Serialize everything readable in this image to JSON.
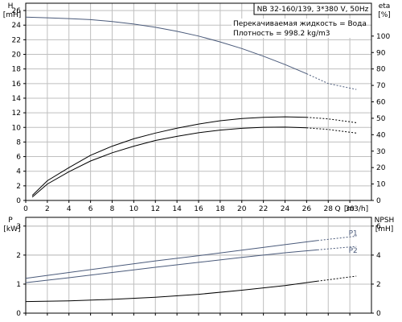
{
  "chart_data": [
    {
      "type": "line",
      "title": "NB 32-160/139, 3*380 V, 50Hz",
      "info": [
        "Перекачиваемая жидкость = Вода",
        "Плотность = 998.2 kg/m3"
      ],
      "y_left": {
        "label": "H",
        "unit": "[mH]",
        "ticks": [
          0,
          2,
          4,
          6,
          8,
          10,
          12,
          14,
          16,
          18,
          20,
          22,
          24,
          26
        ],
        "range": [
          0,
          27
        ]
      },
      "y_right": {
        "label": "eta",
        "unit": "[%]",
        "ticks": [
          0,
          10,
          20,
          30,
          40,
          50,
          60,
          70,
          80,
          90,
          100
        ],
        "range": [
          0,
          120
        ]
      },
      "x": {
        "label": "Q",
        "unit": "[m3/h]",
        "ticks": [
          0,
          2,
          4,
          6,
          8,
          10,
          12,
          14,
          16,
          18,
          20,
          22,
          24,
          26,
          28,
          30
        ],
        "range": [
          0,
          32
        ]
      },
      "grid": true,
      "series": [
        {
          "axis": "left",
          "color": "#4a5a7a",
          "x": [
            0,
            2,
            4,
            6,
            8,
            10,
            12,
            14,
            16,
            18,
            20,
            22,
            24,
            26,
            28,
            30.6
          ],
          "y": [
            25.1,
            25.0,
            24.9,
            24.75,
            24.5,
            24.15,
            23.7,
            23.15,
            22.5,
            21.7,
            20.8,
            19.75,
            18.6,
            17.35,
            16.0,
            15.2
          ],
          "dashed_from": 27
        },
        {
          "axis": "right",
          "color": "#000000",
          "x": [
            0.6,
            2,
            4,
            6,
            8,
            10,
            12,
            14,
            16,
            18,
            20,
            22,
            24,
            26,
            28,
            30.6
          ],
          "y": [
            3,
            12,
            20,
            27.5,
            33,
            37.5,
            41,
            44,
            46.5,
            48.5,
            49.8,
            50.6,
            50.9,
            50.6,
            49.6,
            47.3
          ],
          "dashed_from": 27
        },
        {
          "axis": "right",
          "color": "#000000",
          "x": [
            0.6,
            2,
            4,
            6,
            8,
            10,
            12,
            14,
            16,
            18,
            20,
            22,
            24,
            26,
            28,
            30.6
          ],
          "y": [
            2,
            10,
            17.5,
            24,
            29,
            33,
            36.5,
            39,
            41.2,
            42.8,
            43.9,
            44.5,
            44.6,
            44.2,
            43.2,
            41
          ],
          "dashed_from": 27
        }
      ]
    },
    {
      "type": "line",
      "y_left": {
        "label": "P",
        "unit": "[kW]",
        "ticks": [
          0,
          1,
          2,
          3
        ],
        "range": [
          0,
          3.3
        ]
      },
      "y_right": {
        "label": "NPSH",
        "unit": "[mH]",
        "ticks": [
          0,
          2,
          4,
          6
        ],
        "range": [
          0,
          6.6
        ]
      },
      "x": {
        "ticks": [
          0,
          2,
          4,
          6,
          8,
          10,
          12,
          14,
          16,
          18,
          20,
          22,
          24,
          26,
          28,
          30
        ],
        "range": [
          0,
          32
        ]
      },
      "grid": true,
      "series": [
        {
          "name": "P1",
          "axis": "left",
          "color": "#4a5a7a",
          "x": [
            0,
            4,
            8,
            12,
            16,
            20,
            24,
            27,
            30.6
          ],
          "y": [
            1.2,
            1.4,
            1.6,
            1.8,
            1.98,
            2.17,
            2.36,
            2.5,
            2.65
          ],
          "dashed_from": 27
        },
        {
          "name": "P2",
          "axis": "left",
          "color": "#4a5a7a",
          "x": [
            0,
            4,
            8,
            12,
            16,
            20,
            24,
            27,
            30.6
          ],
          "y": [
            1.05,
            1.22,
            1.4,
            1.58,
            1.75,
            1.92,
            2.08,
            2.18,
            2.3
          ],
          "dashed_from": 27
        },
        {
          "axis": "right",
          "color": "#000000",
          "x": [
            0,
            4,
            8,
            12,
            16,
            20,
            24,
            27,
            30.6
          ],
          "y": [
            0.8,
            0.85,
            0.95,
            1.1,
            1.3,
            1.58,
            1.9,
            2.2,
            2.55
          ],
          "dashed_from": 27
        }
      ]
    }
  ]
}
